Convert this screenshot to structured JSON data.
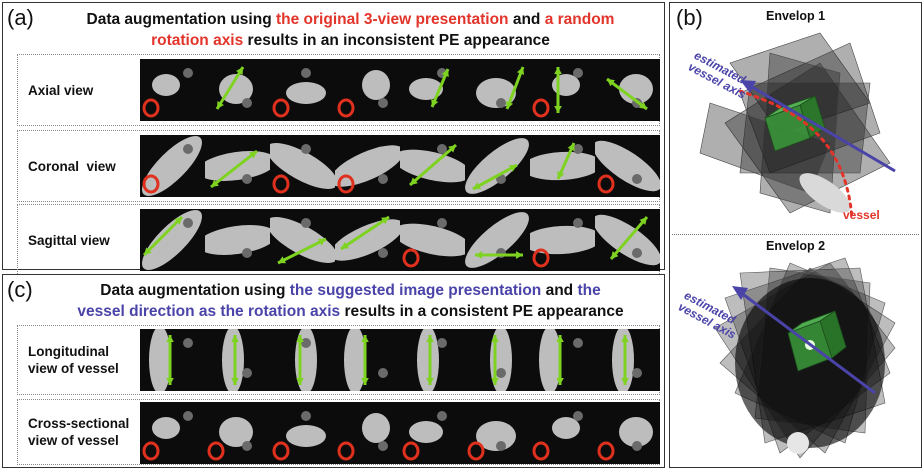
{
  "panel_a": {
    "label": "(a)",
    "title_line1_prefix": "Data augmentation using ",
    "title_line1_red": "the original 3-view presentation",
    "title_line1_mid": " and ",
    "title_line1_red2": "a random",
    "title_line2_red": "rotation axis",
    "title_line2_suffix": " results in an inconsistent PE appearance",
    "rows": [
      {
        "label": "Axial view"
      },
      {
        "label": "Coronal  view"
      },
      {
        "label": "Sagittal view"
      }
    ]
  },
  "panel_c": {
    "label": "(c)",
    "title_line1_prefix": "Data augmentation using ",
    "title_line1_blue": "the suggested image presentation",
    "title_line1_mid": " and ",
    "title_line1_blue2": "the",
    "title_line2_blue": "vessel direction as the rotation axis",
    "title_line2_suffix": " results in a consistent PE appearance",
    "rows": [
      {
        "label_line1": "Longitudinal",
        "label_line2": "view of vessel"
      },
      {
        "label_line1": "Cross-sectional",
        "label_line2": "view of vessel"
      }
    ]
  },
  "panel_b": {
    "label": "(b)",
    "envelope1_title": "Envelop 1",
    "envelope2_title": "Envelop 2",
    "axis_label_line1": "estimated",
    "axis_label_line2": "vessel axis",
    "axis_label2_line1": "estimated",
    "axis_label2_line2": "vessel axis",
    "vessel_label": "vessel"
  },
  "colors": {
    "highlight_red": "#e2342a",
    "highlight_blue": "#4a43a8",
    "arrow_green": "#7ed321",
    "circle_red": "#e0301e"
  }
}
